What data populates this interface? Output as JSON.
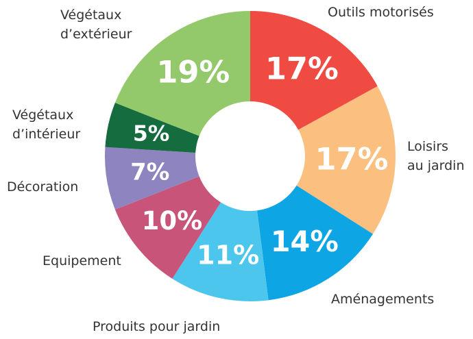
{
  "chart_data": {
    "type": "donut",
    "categories": [
      "Outils motorisés",
      "Loisirs\nau jardin",
      "Aménagements",
      "Produits pour jardin",
      "Equipement",
      "Décoration",
      "Végétaux\nd’intérieur",
      "Végétaux\nd’extérieur"
    ],
    "values": [
      17,
      17,
      14,
      11,
      10,
      7,
      5,
      19
    ],
    "value_labels": [
      "17%",
      "17%",
      "14%",
      "11%",
      "10%",
      "7%",
      "5%",
      "19%"
    ],
    "colors": [
      "#ef4b43",
      "#fbbf7f",
      "#0ea5e4",
      "#4dc6ee",
      "#c8547a",
      "#8e85c0",
      "#146c3f",
      "#93c96b"
    ]
  }
}
